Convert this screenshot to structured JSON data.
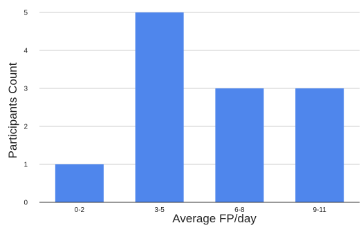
{
  "chart_data": {
    "type": "bar",
    "title": "",
    "xlabel": "Average FP/day",
    "ylabel": "Participants Count",
    "categories": [
      "0-2",
      "3-5",
      "6-8",
      "9-11"
    ],
    "series": [
      {
        "values": [
          1,
          5,
          3,
          3
        ]
      }
    ],
    "ylim": [
      0,
      5
    ],
    "yticks": [
      "0",
      "1",
      "2",
      "3",
      "4",
      "5"
    ],
    "grid": true,
    "legend": "none",
    "colors": {
      "bar": "#4f86ec",
      "grid": "#cccccc",
      "axis": "#333333"
    }
  }
}
